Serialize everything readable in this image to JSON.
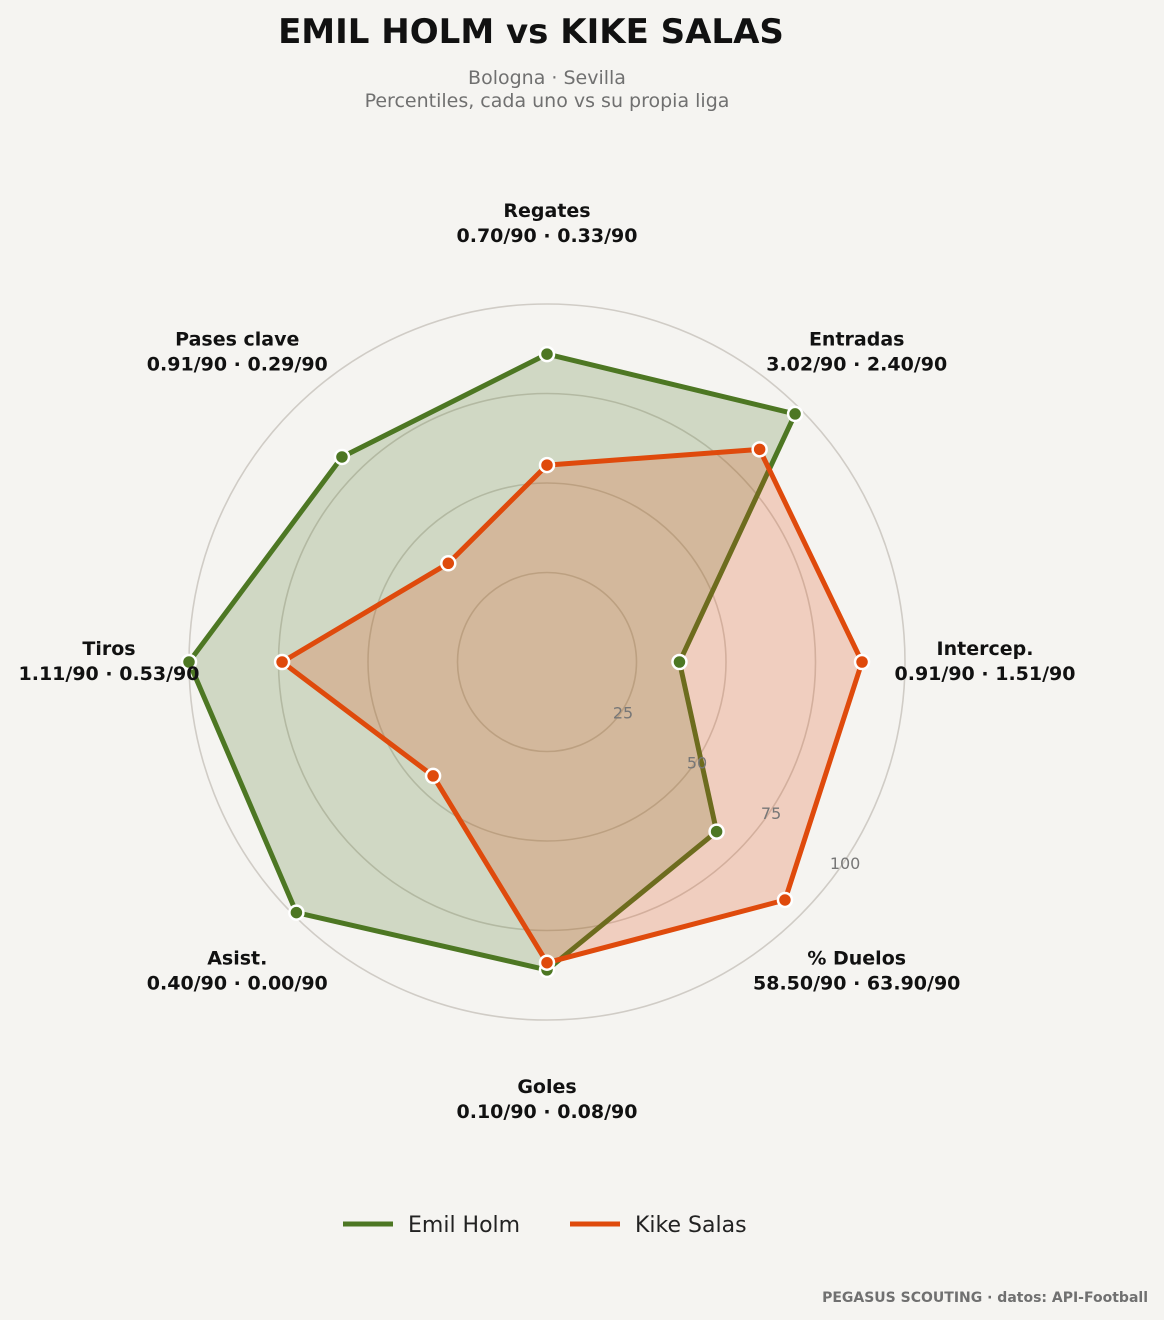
{
  "title": "EMIL HOLM  vs  KIKE SALAS",
  "subtitle_line1": "Bologna · Sevilla",
  "subtitle_line2": "Percentiles, cada uno vs su propia liga",
  "footer": "PEGASUS SCOUTING · datos: API-Football",
  "colors": {
    "background": "#f5f4f1",
    "emil_holm": "#4d7723",
    "kike_salas": "#df4a0c",
    "grid": "#d0ccc6"
  },
  "chart_data": {
    "type": "radar",
    "rlim": [
      0,
      100
    ],
    "radial_ticks": [
      25,
      50,
      75,
      100
    ],
    "axes": [
      {
        "name": "Regates",
        "values_label": "0.70/90 · 0.33/90"
      },
      {
        "name": "Entradas",
        "values_label": "3.02/90 · 2.40/90"
      },
      {
        "name": "Intercep.",
        "values_label": "0.91/90 · 1.51/90"
      },
      {
        "name": "% Duelos",
        "values_label": "58.50/90 · 63.90/90"
      },
      {
        "name": "Goles",
        "values_label": "0.10/90 · 0.08/90"
      },
      {
        "name": "Asist.",
        "values_label": "0.40/90 · 0.00/90"
      },
      {
        "name": "Tiros",
        "values_label": "1.11/90 · 0.53/90"
      },
      {
        "name": "Pases clave",
        "values_label": "0.91/90 · 0.29/90"
      }
    ],
    "series": [
      {
        "name": "Emil Holm",
        "color": "#4d7723",
        "values": [
          86,
          98,
          37,
          67,
          86,
          99,
          100,
          81
        ]
      },
      {
        "name": "Kike Salas",
        "color": "#df4a0c",
        "values": [
          55,
          84,
          88,
          94,
          84,
          45,
          74,
          39
        ]
      }
    ],
    "legend_position": "bottom-center",
    "grid": true
  }
}
